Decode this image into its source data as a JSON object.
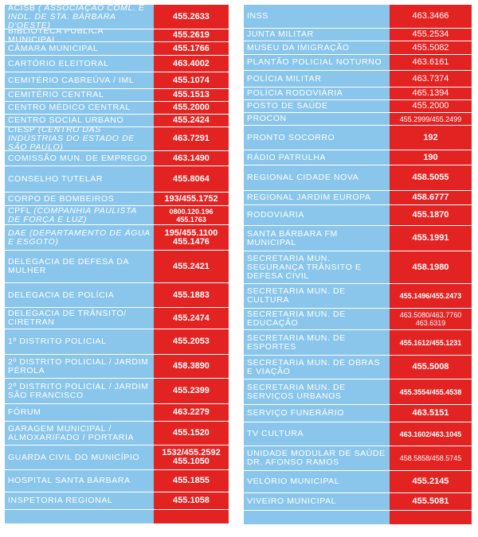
{
  "left": [
    {
      "name": "ACISB",
      "note": "( ASSOCIAÇÃO COML. E INDL. DE STA. BÁRBARA D'OESTE)",
      "num": "455.2633",
      "h": 31
    },
    {
      "name": "BIBLIOTECA PÚBLICA MUNICIPAL",
      "num": "455.2619",
      "h": 16
    },
    {
      "name": "CÂMARA MUNICIPAL",
      "num": "455.1766",
      "h": 17
    },
    {
      "name": "CARTÓRIO ELEITORAL",
      "num": "463.4002",
      "h": 21
    },
    {
      "name": "CEMITÉRIO CABREÚVA / IML",
      "num": "455.1074",
      "h": 21
    },
    {
      "name": "CEMITÉRIO CENTRAL",
      "num": "455.1513",
      "h": 16
    },
    {
      "name": "CENTRO MÉDICO CENTRAL",
      "num": "455.2000",
      "h": 16
    },
    {
      "name": "CENTRO SOCIAL URBANO",
      "num": "455.2424",
      "h": 16
    },
    {
      "name": "CIESP",
      "note": "(CENTRO DAS INDÚSTRIAS DO ESTADO DE SÃO PAULO)",
      "num": "463.7291",
      "h": 30
    },
    {
      "name": "COMISSÃO MUN. DE EMPREGO",
      "num": "463.1490",
      "h": 19
    },
    {
      "name": "CONSELHO TUTELAR",
      "num": "455.8064",
      "h": 33
    },
    {
      "name": "CORPO DE BOMBEIROS",
      "num": "193/455.1752",
      "h": 17
    },
    {
      "name": "CPFL",
      "note": "(COMPANHIA PAULISTA DE FORÇA E LUZ)",
      "num": "0800.120.196\n455.1763",
      "h": 24,
      "small": true
    },
    {
      "name": "",
      "note": "DAE (DEPARTAMENTO DE ÁGUA E ESGOTO)",
      "num": "195/455.1100\n455.1476",
      "h": 32
    },
    {
      "name": "DELEGACIA DE DEFESA DA MULHER",
      "num": "455.2421",
      "h": 41
    },
    {
      "name": "DELEGACIA DE POLÍCIA",
      "num": "455.1883",
      "h": 31
    },
    {
      "name": "DELEGACIA DE TRÂNSITO/ CIRETRAN",
      "num": "455.2474",
      "h": 27
    },
    {
      "name": "1º DISTRITO POLICIAL",
      "num": "455.2053",
      "h": 32
    },
    {
      "name": "2º DISTRITO POLICIAL / JARDIM PÉROLA",
      "num": "458.3890",
      "h": 30
    },
    {
      "name": "2º DISTRITO POLICIAL / JARDIM SÃO FRANCISCO",
      "num": "455.2399",
      "h": 32
    },
    {
      "name": "FÓRUM",
      "num": "463.2279",
      "h": 22
    },
    {
      "name": "GARAGEM MUNICIPAL / ALMOXARIFADO / PORTARIA",
      "num": "455.1520",
      "h": 30
    },
    {
      "name": "GUARDA CIVIL DO MUNICÍPIO",
      "num": "1532/455.2592\n455.1050",
      "h": 31
    },
    {
      "name": "HOSPITAL SANTA BÁRBARA",
      "num": "455.1855",
      "h": 28
    },
    {
      "name": "INSPETORIA REGIONAL",
      "num": "455.1058",
      "h": 22
    },
    {
      "name": "",
      "num": "",
      "h": 18
    }
  ],
  "right": [
    {
      "name": "INSS",
      "num": "463.3466",
      "h": 30,
      "light": true
    },
    {
      "name": "JUNTA MILITAR",
      "num": "455.2534",
      "h": 16,
      "light": true
    },
    {
      "name": "MUSEU DA IMIGRAÇÃO",
      "num": "455.5082",
      "h": 17,
      "light": true
    },
    {
      "name": "PLANTÃO POLICIAL NOTURNO",
      "num": "463.6161",
      "h": 20,
      "light": true
    },
    {
      "name": "POLÍCIA MILITAR",
      "num": "463.7374",
      "h": 21,
      "light": true
    },
    {
      "name": "POLÍCIA RODOVIÁRIA",
      "num": "465.1394",
      "h": 16,
      "light": true
    },
    {
      "name": "POSTO DE SAÚDE",
      "num": "455.2000",
      "h": 16,
      "light": true
    },
    {
      "name": "PROCON",
      "num": "455.2999/455.2499",
      "h": 16,
      "light": true,
      "small": true
    },
    {
      "name": "PRONTO SOCORRO",
      "num": "192",
      "h": 31
    },
    {
      "name": "RÁDIO PATRULHA",
      "num": "190",
      "h": 19
    },
    {
      "name": "REGIONAL CIDADE NOVA",
      "num": "458.5055",
      "h": 32
    },
    {
      "name": "REGIONAL JARDIM EUROPA",
      "num": "458.6777",
      "h": 18
    },
    {
      "name": "RODOVIÁRIA",
      "num": "455.1870",
      "h": 26
    },
    {
      "name": "SANTA BÁRBARA FM MUNICIPAL",
      "num": "455.1991",
      "h": 32
    },
    {
      "name": "SECRETARIA MUN. SEGURANÇA TRÂNSITO E DEFESA CIVIL",
      "num": "458.1980",
      "h": 41
    },
    {
      "name": "SECRETARIA MUN. DE CULTURA",
      "num": "455.1496/455.2473",
      "h": 31,
      "small": true
    },
    {
      "name": "SECRETARIA MUN. DE EDUCAÇÃO",
      "num": "463.5080/463.7760\n463.6319",
      "h": 27,
      "light": true,
      "small": true
    },
    {
      "name": "SECRETARIA MUN. DE ESPORTES",
      "num": "455.1612/455.1231",
      "h": 32,
      "small": true
    },
    {
      "name": "SECRETARIA MUN. DE OBRAS E VIAÇÃO",
      "num": "455.5008",
      "h": 30
    },
    {
      "name": "SECRETARIA MUN. DE SERVIÇOS URBANOS",
      "num": "455.3554/455.4538",
      "h": 32,
      "small": true
    },
    {
      "name": "SERVIÇO FUNERÁRIO",
      "num": "463.5151",
      "h": 22
    },
    {
      "name": "TV CULTURA",
      "num": "463.1602/463.1045",
      "h": 30,
      "small": true
    },
    {
      "name": "UNIDADE MODULAR DE SAÚDE DR. AFONSO RAMOS",
      "num": "458.5858/458.5745",
      "h": 31,
      "light": true,
      "small": true
    },
    {
      "name": "VELÓRIO MUNICIPAL",
      "num": "455.2145",
      "h": 28
    },
    {
      "name": "VIVEIRO MUNICIPAL",
      "num": "455.5081",
      "h": 22
    },
    {
      "name": "",
      "num": "",
      "h": 18
    }
  ],
  "colors": {
    "name_bg": "#8ac6ec",
    "number_bg": "#e32222",
    "text": "#ffffff"
  }
}
